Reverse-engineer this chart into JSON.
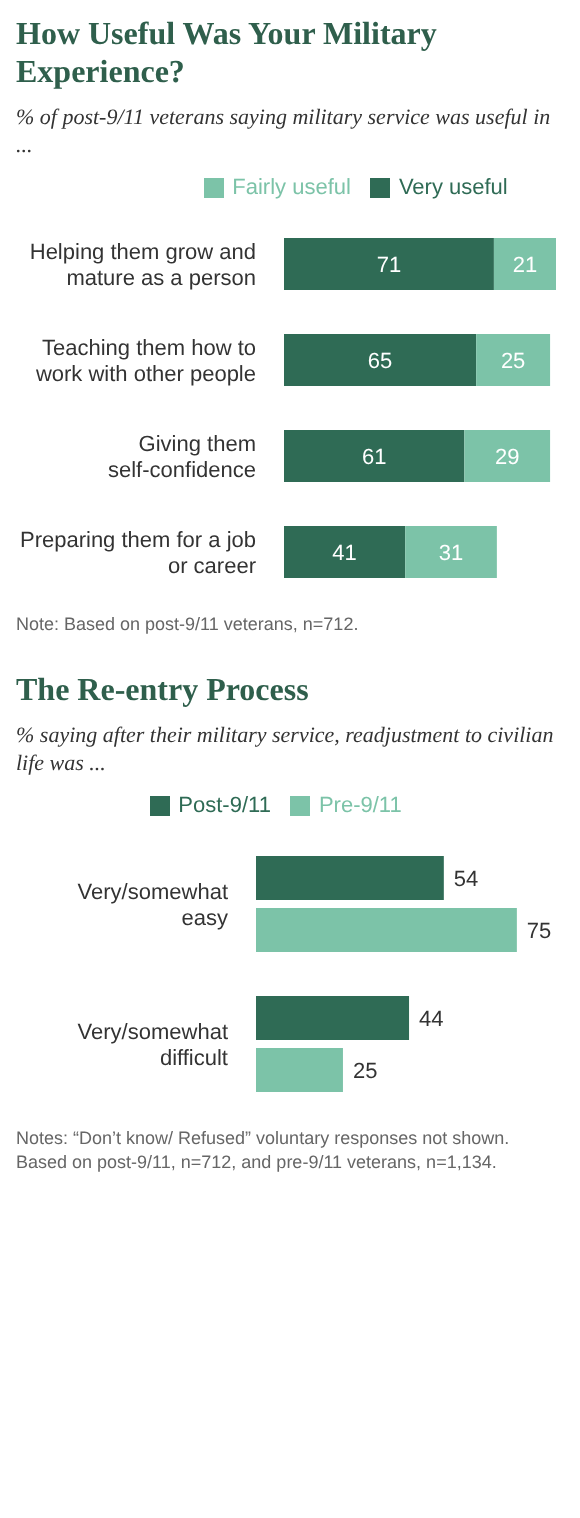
{
  "chart_data": [
    {
      "type": "bar",
      "orientation": "horizontal",
      "stacked": true,
      "title": "How Useful Was Your Military Experience?",
      "subtitle": "% of post-9/11 veterans saying military service was useful in ...",
      "categories": [
        "Helping them grow and mature as a person",
        "Teaching them how to work with other people",
        "Giving them self-confidence",
        "Preparing them for a job or career"
      ],
      "series": [
        {
          "name": "Very useful",
          "color": "#2f6b55",
          "values": [
            71,
            65,
            61,
            41
          ]
        },
        {
          "name": "Fairly useful",
          "color": "#7cc3a8",
          "values": [
            21,
            25,
            29,
            31
          ]
        }
      ],
      "data_labels": true,
      "legend": "top",
      "annotations": [
        "Note: Based on post-9/11 veterans, n=712."
      ]
    },
    {
      "type": "bar",
      "orientation": "horizontal",
      "title": "The Re-entry Process",
      "subtitle": "% saying after their military service, readjustment to civilian life was ...",
      "categories": [
        "Very/somewhat easy",
        "Very/somewhat difficult"
      ],
      "series": [
        {
          "name": "Post-9/11",
          "color": "#2f6b55",
          "values": [
            54,
            44
          ]
        },
        {
          "name": "Pre-9/11",
          "color": "#7cc3a8",
          "values": [
            75,
            25
          ]
        }
      ],
      "data_labels": true,
      "legend": "top",
      "annotations": [
        "Notes: “Don’t know/ Refused” voluntary responses not shown. Based on post-9/11, n=712, and pre-9/11 veterans, n=1,134."
      ]
    }
  ]
}
